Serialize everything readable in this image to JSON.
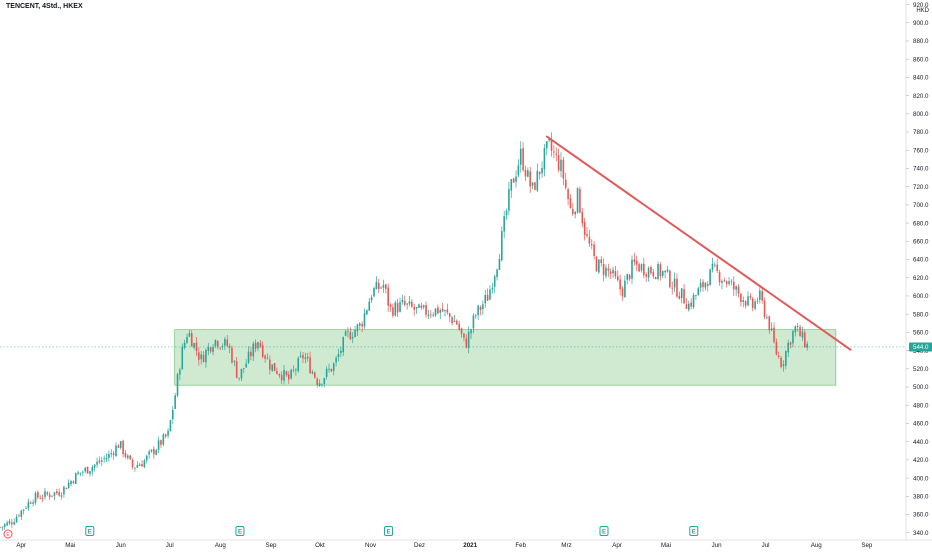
{
  "header": {
    "symbol": "TENCENT",
    "interval": "4Std.",
    "exchange": "HKEX",
    "title": "TENCENT, 4Std., HKEX",
    "currency": "HKD"
  },
  "colors": {
    "up": "#26a69a",
    "down": "#ef5350",
    "trendline": "#e05a5a",
    "zone_fill": "#c8e6c9",
    "zone_stroke": "#81c784",
    "price_label_bg": "#26a69a",
    "grid_text": "#131722",
    "earnings_icon": "#26a69a"
  },
  "chart_data": {
    "type": "candlestick",
    "y_axis": {
      "side": "right",
      "range": [
        332,
        925
      ],
      "ticks": [
        340,
        360,
        380,
        400,
        420,
        440,
        460,
        480,
        500,
        520,
        540,
        560,
        580,
        600,
        620,
        640,
        660,
        680,
        700,
        720,
        740,
        760,
        780,
        800,
        820,
        840,
        860,
        880,
        900,
        920
      ],
      "tick_labels": [
        "340.0",
        "360.0",
        "380.0",
        "400.0",
        "420.0",
        "440.0",
        "460.0",
        "480.0",
        "500.0",
        "520.0",
        "540.0",
        "560.0",
        "580.0",
        "600.0",
        "620.0",
        "640.0",
        "660.0",
        "680.0",
        "700.0",
        "720.0",
        "740.0",
        "760.0",
        "780.0",
        "800.0",
        "820.0",
        "840.0",
        "860.0",
        "880.0",
        "900.0",
        "920.0"
      ]
    },
    "x_axis": {
      "labels": [
        "Apr",
        "Mai",
        "Jun",
        "Jul",
        "Aug",
        "Sep",
        "Okt",
        "Nov",
        "Dez",
        "2021",
        "Feb",
        "Mrz",
        "Apr",
        "Mai",
        "Jun",
        "Jul",
        "Aug",
        "Sep"
      ],
      "label_dates": [
        "2020-04",
        "2020-05",
        "2020-06",
        "2020-07",
        "2020-08",
        "2020-09",
        "2020-10",
        "2020-11",
        "2020-12",
        "2021-01",
        "2021-02",
        "2021-03",
        "2021-04",
        "2021-05",
        "2021-06",
        "2021-07",
        "2021-08",
        "2021-09"
      ],
      "range": [
        "2020-03-19",
        "2021-09-25"
      ]
    },
    "last_price": 544.0,
    "last_price_label": "544.0",
    "path": [
      [
        "2020-03-19",
        346
      ],
      [
        "2020-03-26",
        352
      ],
      [
        "2020-04-08",
        378
      ],
      [
        "2020-04-25",
        385
      ],
      [
        "2020-05-06",
        405
      ],
      [
        "2020-05-14",
        412
      ],
      [
        "2020-05-25",
        425
      ],
      [
        "2020-05-31",
        438
      ],
      [
        "2020-06-08",
        412
      ],
      [
        "2020-06-15",
        418
      ],
      [
        "2020-06-22",
        432
      ],
      [
        "2020-06-30",
        448
      ],
      [
        "2020-07-04",
        488
      ],
      [
        "2020-07-08",
        535
      ],
      [
        "2020-07-12",
        562
      ],
      [
        "2020-07-20",
        530
      ],
      [
        "2020-07-28",
        552
      ],
      [
        "2020-08-06",
        545
      ],
      [
        "2020-08-12",
        510
      ],
      [
        "2020-08-24",
        552
      ],
      [
        "2020-08-31",
        525
      ],
      [
        "2020-09-12",
        508
      ],
      [
        "2020-09-21",
        535
      ],
      [
        "2020-09-30",
        505
      ],
      [
        "2020-10-10",
        525
      ],
      [
        "2020-10-17",
        555
      ],
      [
        "2020-10-26",
        568
      ],
      [
        "2020-11-02",
        605
      ],
      [
        "2020-11-09",
        612
      ],
      [
        "2020-11-13",
        585
      ],
      [
        "2020-11-21",
        590
      ],
      [
        "2020-12-02",
        582
      ],
      [
        "2020-12-14",
        585
      ],
      [
        "2020-12-24",
        570
      ],
      [
        "2020-12-29",
        545
      ],
      [
        "2021-01-04",
        578
      ],
      [
        "2021-01-12",
        600
      ],
      [
        "2021-01-18",
        640
      ],
      [
        "2021-01-26",
        720
      ],
      [
        "2021-02-01",
        755
      ],
      [
        "2021-02-08",
        715
      ],
      [
        "2021-02-14",
        745
      ],
      [
        "2021-02-18",
        765
      ],
      [
        "2021-02-26",
        740
      ],
      [
        "2021-03-04",
        690
      ],
      [
        "2021-03-08",
        710
      ],
      [
        "2021-03-13",
        665
      ],
      [
        "2021-03-19",
        635
      ],
      [
        "2021-03-28",
        625
      ],
      [
        "2021-04-04",
        605
      ],
      [
        "2021-04-11",
        635
      ],
      [
        "2021-04-18",
        630
      ],
      [
        "2021-04-30",
        625
      ],
      [
        "2021-05-10",
        602
      ],
      [
        "2021-05-15",
        590
      ],
      [
        "2021-05-22",
        608
      ],
      [
        "2021-05-30",
        628
      ],
      [
        "2021-06-06",
        618
      ],
      [
        "2021-06-16",
        600
      ],
      [
        "2021-06-23",
        588
      ],
      [
        "2021-06-27",
        600
      ],
      [
        "2021-07-03",
        570
      ],
      [
        "2021-07-07",
        540
      ],
      [
        "2021-07-11",
        525
      ],
      [
        "2021-07-15",
        548
      ],
      [
        "2021-07-19",
        565
      ],
      [
        "2021-07-24",
        552
      ],
      [
        "2021-07-27",
        544
      ]
    ],
    "annotations": {
      "support_zone": {
        "date_start": "2020-07-04",
        "date_end": "2021-08-13",
        "price_low": 502,
        "price_high": 563
      },
      "trendline": {
        "start": [
          "2021-02-17",
          775
        ],
        "end": [
          "2021-08-22",
          541
        ]
      },
      "earnings_markers": [
        "2020-05-13",
        "2020-08-13",
        "2020-11-12",
        "2021-03-24",
        "2021-05-18"
      ],
      "earnings_marker_label": "E",
      "start_marker_label": "E"
    }
  }
}
